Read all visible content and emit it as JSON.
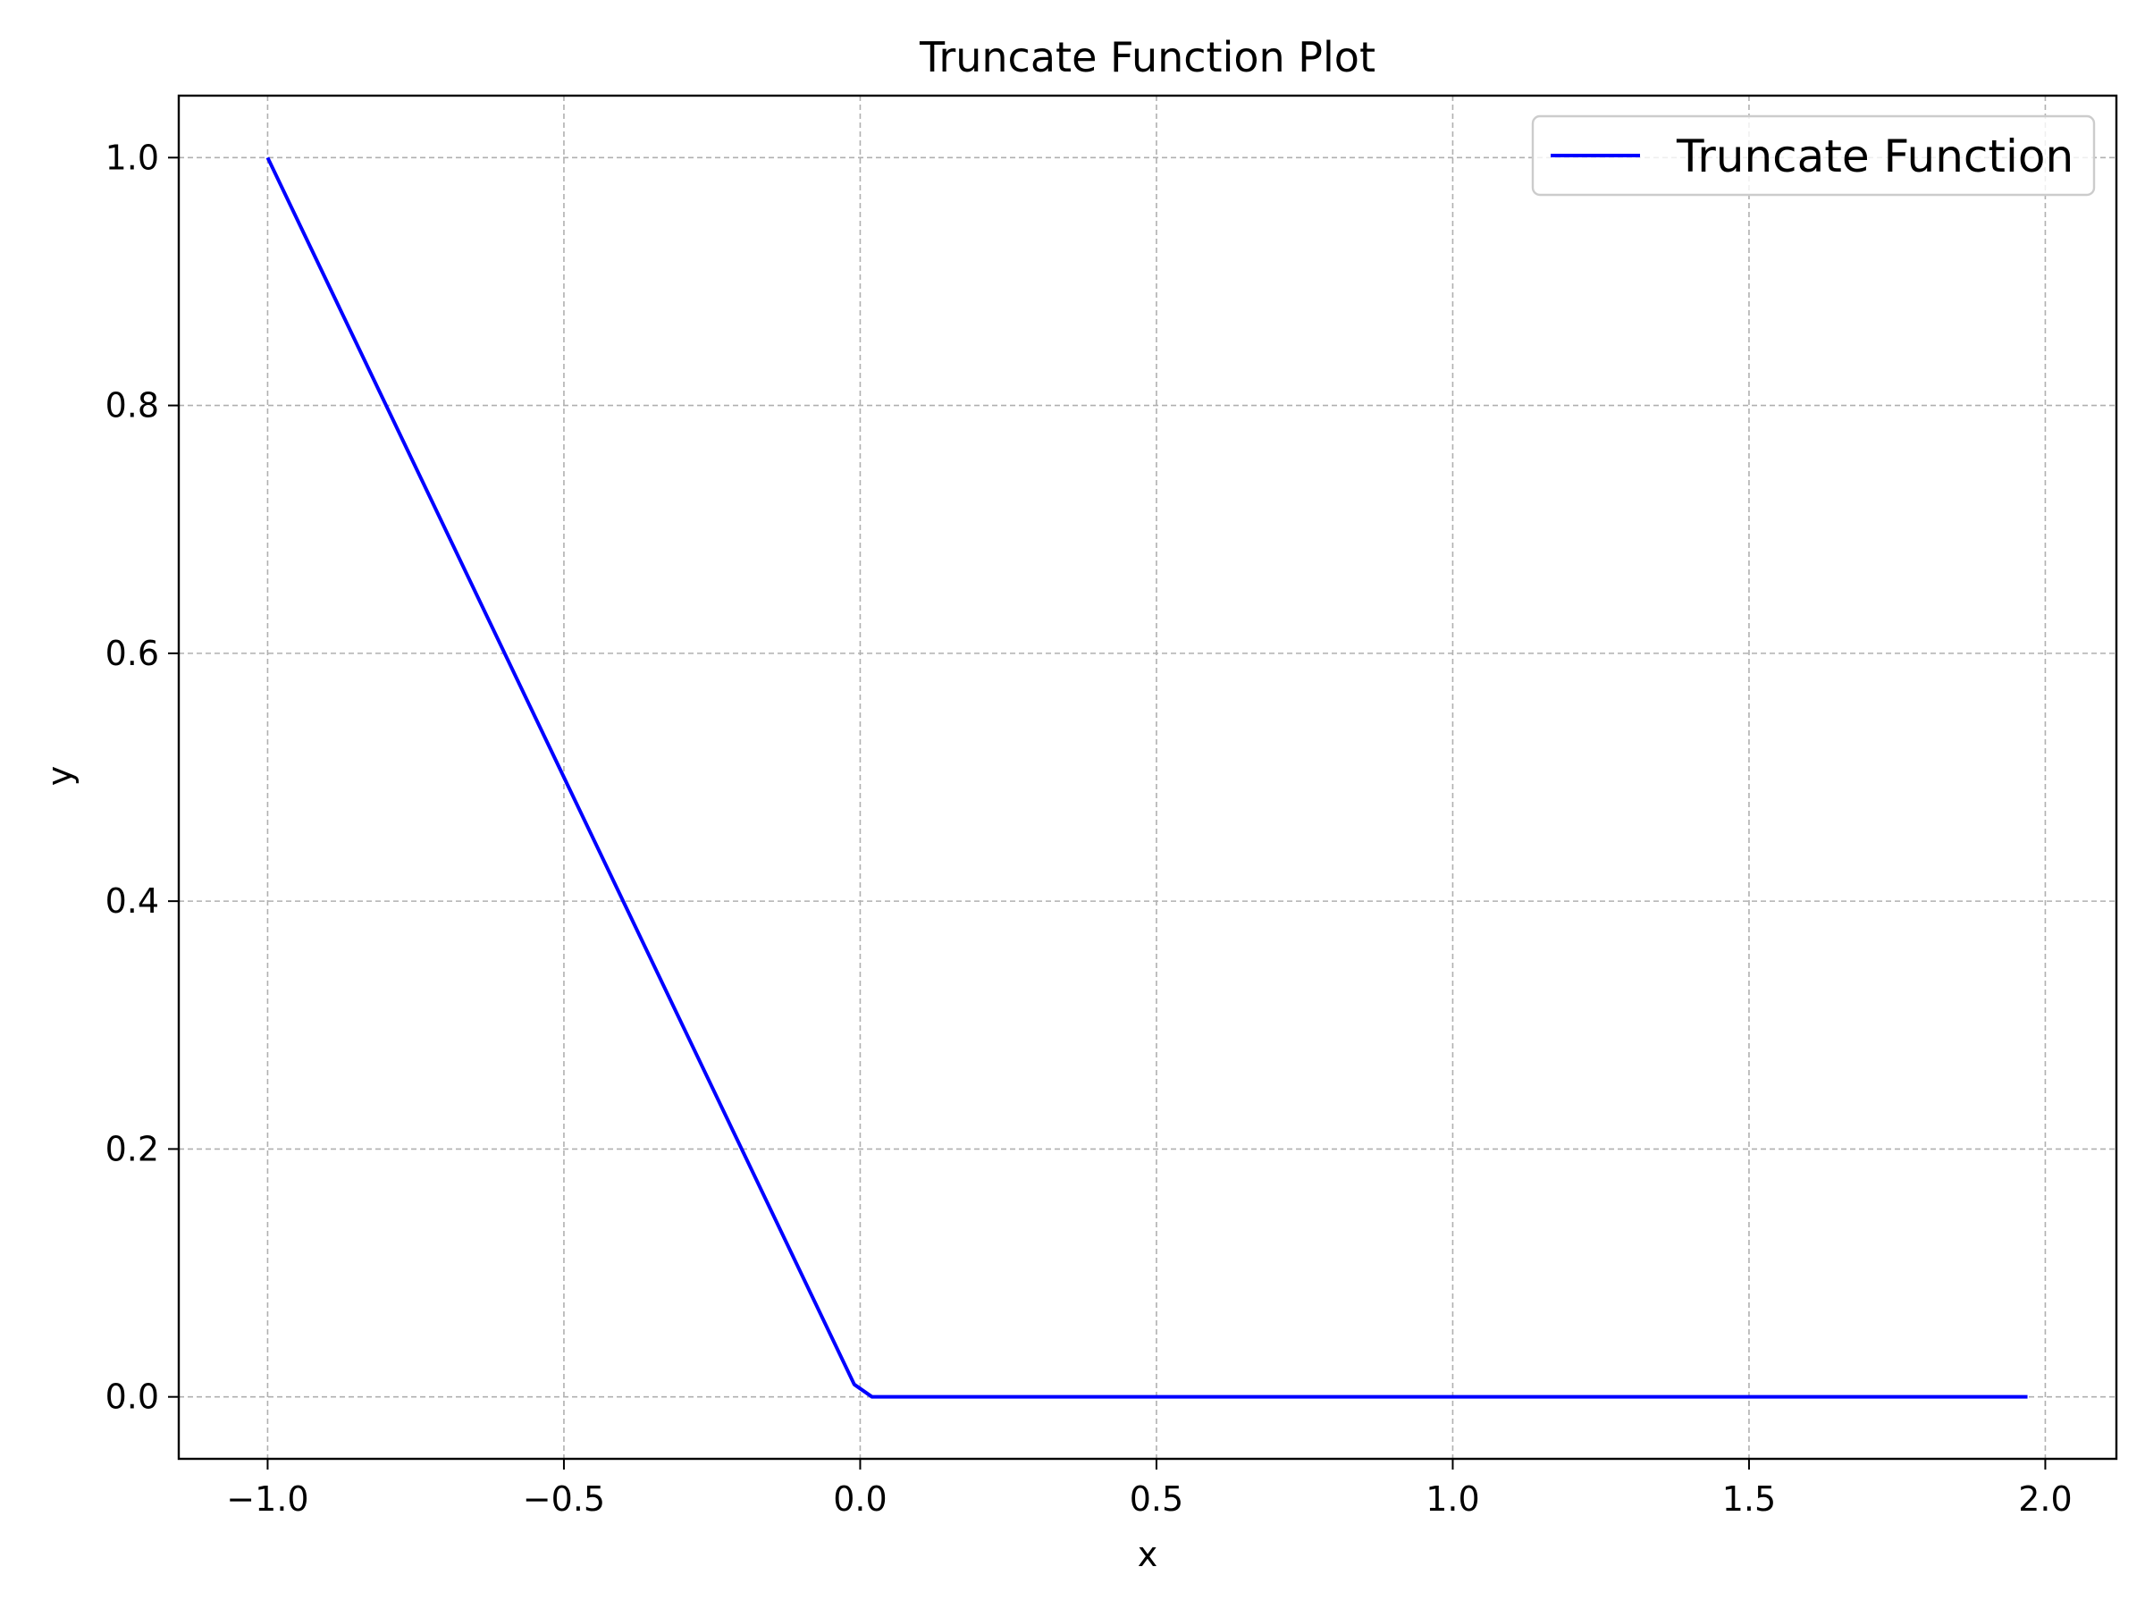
{
  "chart_data": {
    "type": "line",
    "title": "Truncate Function Plot",
    "xlabel": "x",
    "ylabel": "y",
    "xlim": [
      -1.15,
      2.12
    ],
    "ylim": [
      -0.05,
      1.05
    ],
    "x_ticks": [
      -1.0,
      -0.5,
      0.0,
      0.5,
      1.0,
      1.5,
      2.0
    ],
    "x_tick_labels": [
      "−1.0",
      "−0.5",
      "0.0",
      "0.5",
      "1.0",
      "1.5",
      "2.0"
    ],
    "y_ticks": [
      0.0,
      0.2,
      0.4,
      0.6,
      0.8,
      1.0
    ],
    "y_tick_labels": [
      "0.0",
      "0.2",
      "0.4",
      "0.6",
      "0.8",
      "1.0"
    ],
    "grid": true,
    "legend_position": "top-right",
    "series": [
      {
        "name": "Truncate Function",
        "color": "#0000ff",
        "x": [
          -1.0,
          -0.01,
          0.02,
          1.97
        ],
        "y": [
          1.0,
          0.01,
          0.0,
          0.0
        ]
      }
    ]
  }
}
